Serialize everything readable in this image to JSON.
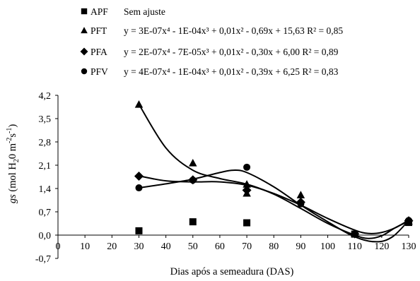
{
  "chart_data": {
    "type": "scatter",
    "xlabel": "Dias após a semeadura (DAS)",
    "ylabel_main": "gs",
    "ylabel_units": "(mol H",
    "ylabel_sub": "2",
    "ylabel_units2": "0 m",
    "ylabel_sup1": "-2",
    "ylabel_units3": "s",
    "ylabel_sup2": "-1",
    "ylabel_end": ")",
    "xlim": [
      0,
      130
    ],
    "ylim": [
      -0.7,
      4.2
    ],
    "x_ticks": [
      0,
      10,
      20,
      30,
      40,
      50,
      60,
      70,
      80,
      90,
      100,
      110,
      120,
      130
    ],
    "x_tick_labels": [
      "0",
      "10",
      "20",
      "30",
      "40",
      "50",
      "60",
      "70",
      "80",
      "90",
      "100",
      "110",
      "120",
      "130"
    ],
    "y_ticks": [
      -0.7,
      0.0,
      0.7,
      1.4,
      2.1,
      2.8,
      3.5,
      4.2
    ],
    "y_tick_labels": [
      "-0,7",
      "0,0",
      "0,7",
      "1,4",
      "2,1",
      "2,8",
      "3,5",
      "4,2"
    ],
    "legend_position": "top",
    "grid": false,
    "series": [
      {
        "name": "APF",
        "marker": "square",
        "equation": "Sem ajuste",
        "x": [
          30,
          50,
          70,
          110,
          130
        ],
        "y": [
          0.13,
          0.4,
          0.37,
          0.03,
          0.38
        ]
      },
      {
        "name": "PFT",
        "marker": "triangle",
        "equation": "y = 3E-07x⁴ - 1E-04x³ + 0,01x² - 0,69x + 15,63 R² = 0,85",
        "x": [
          30,
          50,
          70,
          70,
          90,
          110,
          130
        ],
        "y": [
          3.93,
          2.17,
          1.26,
          1.53,
          1.21,
          0.05,
          0.42
        ],
        "fit": [
          [
            30,
            3.93
          ],
          [
            40,
            2.62
          ],
          [
            50,
            1.95
          ],
          [
            60,
            1.7
          ],
          [
            70,
            1.53
          ],
          [
            80,
            1.23
          ],
          [
            90,
            0.8
          ],
          [
            100,
            0.35
          ],
          [
            110,
            0.0
          ],
          [
            115,
            -0.1
          ],
          [
            120,
            -0.02
          ],
          [
            125,
            0.22
          ],
          [
            130,
            0.42
          ]
        ]
      },
      {
        "name": "PFA",
        "marker": "diamond",
        "equation": "y = 2E-07x⁴ - 7E-05x³ + 0,01x² - 0,30x + 6,00 R² = 0,89",
        "x": [
          30,
          50,
          70,
          90,
          110,
          130
        ],
        "y": [
          1.77,
          1.66,
          1.35,
          0.99,
          0.04,
          0.43
        ],
        "fit": [
          [
            30,
            1.78
          ],
          [
            40,
            1.63
          ],
          [
            50,
            1.6
          ],
          [
            60,
            1.6
          ],
          [
            70,
            1.5
          ],
          [
            80,
            1.25
          ],
          [
            90,
            0.9
          ],
          [
            100,
            0.5
          ],
          [
            110,
            0.15
          ],
          [
            115,
            0.05
          ],
          [
            120,
            0.08
          ],
          [
            125,
            0.22
          ],
          [
            130,
            0.45
          ]
        ]
      },
      {
        "name": "PFV",
        "marker": "circle",
        "equation": "y = 4E-07x⁴ - 1E-04x³ + 0,01x² - 0,39x + 6,25 R² = 0,83",
        "x": [
          30,
          50,
          70,
          90,
          110,
          130
        ],
        "y": [
          1.42,
          1.65,
          2.04,
          0.94,
          0.03,
          0.44
        ],
        "fit": [
          [
            30,
            1.42
          ],
          [
            40,
            1.54
          ],
          [
            50,
            1.68
          ],
          [
            60,
            1.88
          ],
          [
            65,
            1.95
          ],
          [
            70,
            1.88
          ],
          [
            80,
            1.45
          ],
          [
            90,
            0.9
          ],
          [
            100,
            0.4
          ],
          [
            110,
            -0.05
          ],
          [
            118,
            -0.2
          ],
          [
            124,
            -0.05
          ],
          [
            130,
            0.44
          ]
        ]
      }
    ]
  }
}
